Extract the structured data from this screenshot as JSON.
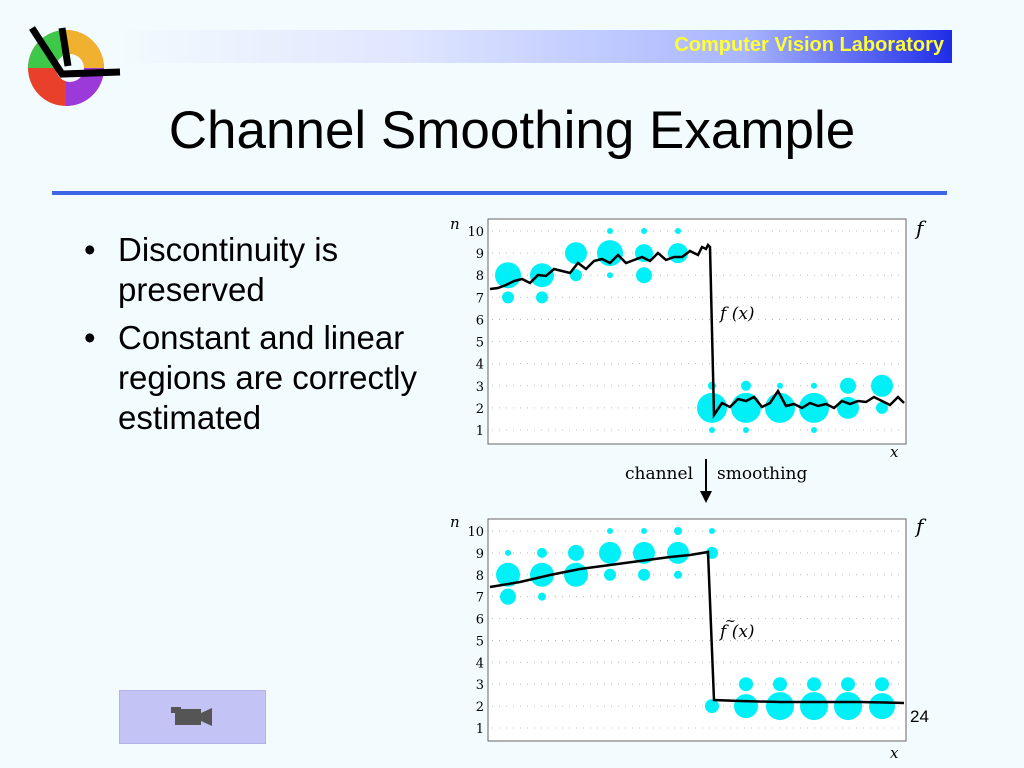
{
  "header": {
    "lab_name": "Computer Vision Laboratory"
  },
  "slide": {
    "title": "Channel Smoothing Example",
    "page_number": "24",
    "bullets": [
      "Discontinuity is preserved",
      "Constant and linear regions are correctly estimated"
    ]
  },
  "figure": {
    "top_plot": {
      "y_axis_label": "n",
      "x_axis_label": "x",
      "right_label": "f",
      "curve_label": "f (x)",
      "y_ticks": [
        "1",
        "2",
        "3",
        "4",
        "5",
        "6",
        "7",
        "8",
        "9",
        "10"
      ]
    },
    "arrow": {
      "left_text": "channel",
      "right_text": "smoothing"
    },
    "bottom_plot": {
      "y_axis_label": "n",
      "x_axis_label": "x",
      "right_label": "f",
      "curve_label": "f (x)",
      "y_ticks": [
        "1",
        "2",
        "3",
        "4",
        "5",
        "6",
        "7",
        "8",
        "9",
        "10"
      ]
    }
  },
  "colors": {
    "banner_text": "#ffff33",
    "rule": "#3d67e6",
    "blob": "#00f0f8",
    "button": "#c3c3f5"
  },
  "icons": {
    "movie_button": "video-camera-icon",
    "logo": "cvl-logo"
  }
}
